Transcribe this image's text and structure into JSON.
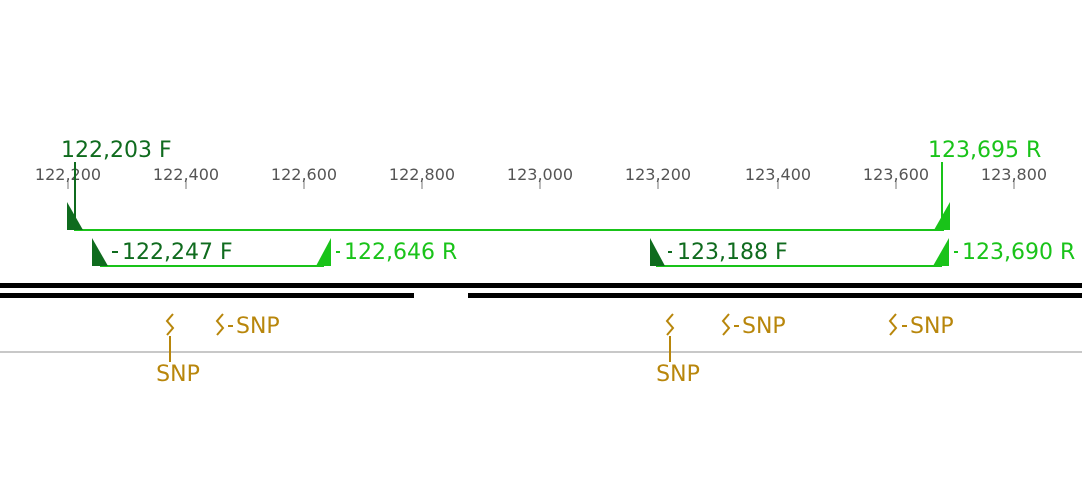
{
  "ruler": {
    "ticks": [
      "122,200",
      "122,400",
      "122,600",
      "122,800",
      "123,000",
      "123,200",
      "123,400",
      "123,600",
      "123,800"
    ]
  },
  "colors": {
    "dark_green": "#0f6b1e",
    "bright_green": "#19c319",
    "snp": "#b8860b",
    "sequence": "#000000",
    "axis": "#c8c8c8",
    "tick_text": "#555555"
  },
  "products": [
    {
      "forward_label": "122,203 F",
      "reverse_label": "123,695 R"
    },
    {
      "forward_label": "122,247 F",
      "reverse_label": "122,646 R"
    },
    {
      "forward_label": "123,188 F",
      "reverse_label": "123,690 R"
    }
  ],
  "snps": [
    {
      "label": "SNP"
    },
    {
      "label": "SNP"
    },
    {
      "label": "SNP"
    },
    {
      "label": "SNP"
    },
    {
      "label": "SNP"
    }
  ]
}
